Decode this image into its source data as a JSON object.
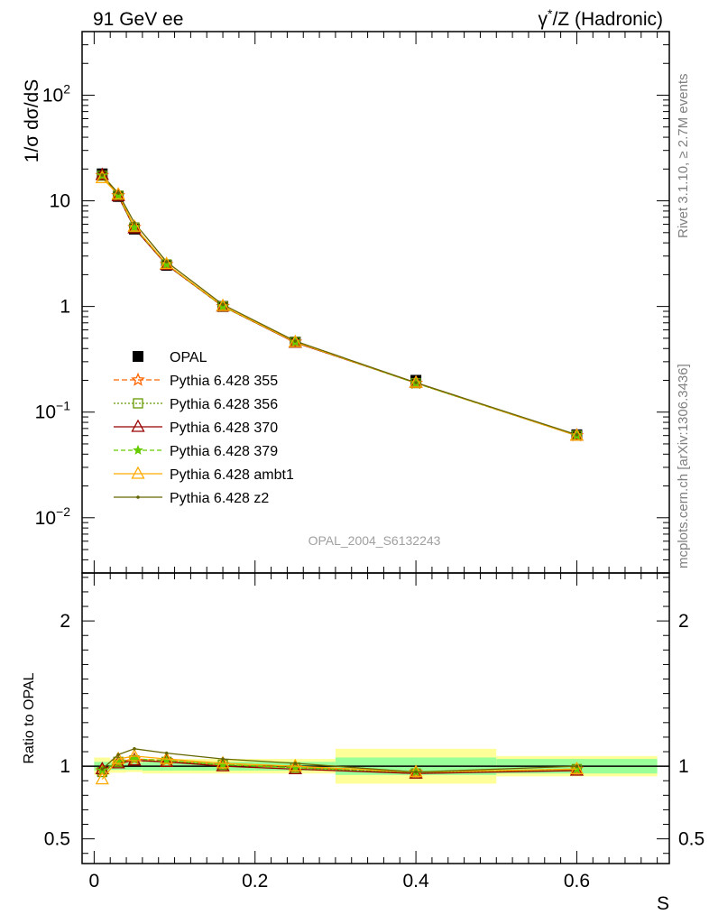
{
  "header": {
    "left": "91 GeV ee",
    "right_prefix": "γ",
    "right_sup": "*",
    "right_rest": "/Z (Hadronic)"
  },
  "side": {
    "rivet": "Rivet 3.1.10, ≥ 2.7M events",
    "mcplots": "mcplots.cern.ch [arXiv:1306.3436]"
  },
  "analysis_id": "OPAL_2004_S6132243",
  "chart_data": [
    {
      "type": "line",
      "panel": "main",
      "ylabel": "1/σ dσ/dS",
      "yscale": "log",
      "ylim": [
        0.003,
        400
      ],
      "xlim": [
        -0.015,
        0.715
      ],
      "x": [
        0.01,
        0.03,
        0.05,
        0.09,
        0.16,
        0.25,
        0.4,
        0.6
      ],
      "y_tick_labels": [
        {
          "value": 100,
          "base": "10",
          "exp": "2"
        },
        {
          "value": 10,
          "base": "10",
          "exp": ""
        },
        {
          "value": 1,
          "base": "1",
          "exp": ""
        },
        {
          "value": 0.1,
          "base": "10",
          "exp": "−1"
        },
        {
          "value": 0.01,
          "base": "10",
          "exp": "−2"
        }
      ],
      "data": {
        "name": "OPAL",
        "values": [
          18.0,
          11.0,
          5.4,
          2.45,
          1.0,
          0.46,
          0.2,
          0.061
        ]
      },
      "series": [
        {
          "name": "Pythia 6.428 355",
          "color": "#ff6600",
          "marker": "star",
          "dash": "6,3",
          "values": [
            17.4,
            11.2,
            5.6,
            2.5,
            1.0,
            0.46,
            0.188,
            0.06
          ]
        },
        {
          "name": "Pythia 6.428 356",
          "color": "#669900",
          "marker": "square",
          "dash": "2,2",
          "values": [
            17.3,
            11.2,
            5.6,
            2.5,
            1.0,
            0.46,
            0.188,
            0.06
          ]
        },
        {
          "name": "Pythia 6.428 370",
          "color": "#990000",
          "marker": "triangle",
          "dash": "",
          "values": [
            17.6,
            11.1,
            5.5,
            2.48,
            1.0,
            0.455,
            0.19,
            0.06
          ]
        },
        {
          "name": "Pythia 6.428 379",
          "color": "#66cc00",
          "marker": "star-small",
          "dash": "5,3",
          "values": [
            17.4,
            11.2,
            5.6,
            2.5,
            1.0,
            0.46,
            0.188,
            0.06
          ]
        },
        {
          "name": "Pythia 6.428 ambt1",
          "color": "#ffaa00",
          "marker": "triangle",
          "dash": "",
          "values": [
            16.4,
            11.5,
            5.7,
            2.52,
            1.01,
            0.46,
            0.19,
            0.06
          ]
        },
        {
          "name": "Pythia 6.428 z2",
          "color": "#666600",
          "marker": "dot",
          "dash": "",
          "values": [
            17.5,
            11.8,
            6.2,
            2.65,
            1.04,
            0.47,
            0.19,
            0.061
          ]
        }
      ]
    },
    {
      "type": "line",
      "panel": "ratio",
      "xlabel": "S",
      "ylabel": "Ratio to OPAL",
      "ylim": [
        0.33,
        2.33
      ],
      "xlim": [
        -0.015,
        0.715
      ],
      "x": [
        0.01,
        0.03,
        0.05,
        0.09,
        0.16,
        0.25,
        0.4,
        0.6
      ],
      "x_ticks": [
        0,
        0.2,
        0.4,
        0.6
      ],
      "x_tick_labels": [
        "0",
        "0.2",
        "0.4",
        "0.6"
      ],
      "y_ticks": [
        0.5,
        1,
        2
      ],
      "y_tick_labels": [
        "0.5",
        "1",
        "2"
      ],
      "band_edges": [
        0,
        0.02,
        0.04,
        0.06,
        0.12,
        0.2,
        0.3,
        0.5,
        0.7
      ],
      "band_inner": [
        0.03,
        0.025,
        0.025,
        0.03,
        0.03,
        0.03,
        0.06,
        0.05
      ],
      "band_outer": [
        0.06,
        0.045,
        0.04,
        0.05,
        0.05,
        0.05,
        0.12,
        0.07
      ],
      "series": [
        {
          "name": "Pythia 6.428 355",
          "values": [
            0.97,
            1.03,
            1.05,
            1.04,
            1.01,
            0.99,
            0.96,
            0.98
          ]
        },
        {
          "name": "Pythia 6.428 356",
          "values": [
            0.96,
            1.03,
            1.04,
            1.03,
            1.01,
            0.99,
            0.95,
            0.98
          ]
        },
        {
          "name": "Pythia 6.428 370",
          "values": [
            0.98,
            1.02,
            1.04,
            1.03,
            1.0,
            0.98,
            0.95,
            0.97
          ]
        },
        {
          "name": "Pythia 6.428 379",
          "values": [
            0.97,
            1.03,
            1.05,
            1.04,
            1.01,
            0.99,
            0.96,
            0.98
          ]
        },
        {
          "name": "Pythia 6.428 ambt1",
          "values": [
            0.91,
            1.05,
            1.07,
            1.05,
            1.02,
            1.0,
            0.96,
            0.98
          ]
        },
        {
          "name": "Pythia 6.428 z2",
          "values": [
            0.98,
            1.08,
            1.12,
            1.09,
            1.05,
            1.02,
            0.96,
            1.0
          ]
        }
      ]
    }
  ]
}
